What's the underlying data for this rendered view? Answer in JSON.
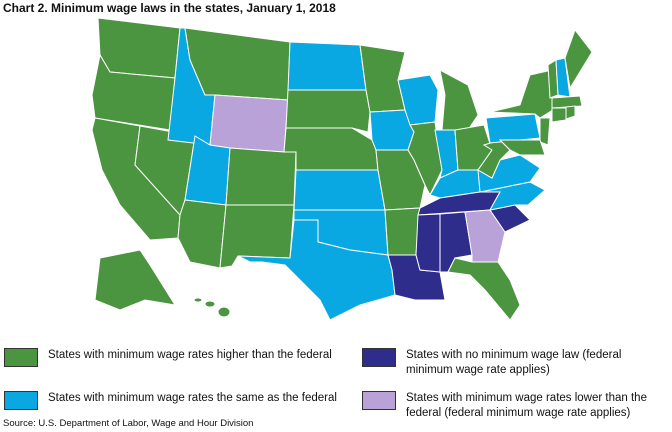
{
  "title": "Chart 2. Minimum wage laws in the states, January 1, 2018",
  "legend": [
    {
      "label": "States with minimum wage rates higher than the federal",
      "color": "#4b9440"
    },
    {
      "label": "States with no minimum wage law (federal minimum wage rate applies)",
      "color": "#2f2d8c"
    },
    {
      "label": "States with minimum wage rates the same as the federal",
      "color": "#0aa8e2"
    },
    {
      "label": "States with minimum wage rates lower than the federal (federal minimum wage rate applies)",
      "color": "#b9a2d8"
    }
  ],
  "source": "Source: U.S. Department of Labor, Wage and Hour Division"
}
